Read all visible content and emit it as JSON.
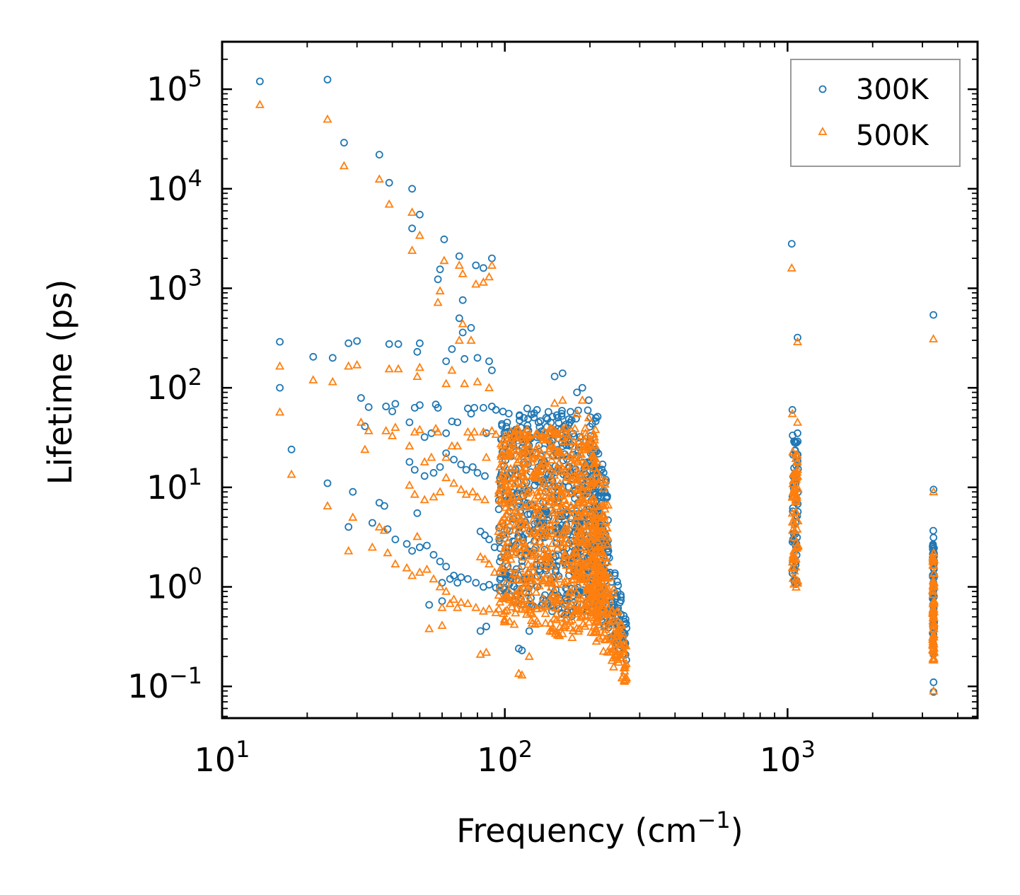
{
  "chart_data": {
    "type": "scatter",
    "title": "",
    "xlabel": "Frequency (cm",
    "xlabel_sup": "−1",
    "xlabel_suffix": ")",
    "ylabel": "Lifetime (ps)",
    "xscale": "log",
    "yscale": "log",
    "xlim": [
      10,
      4700
    ],
    "ylim": [
      0.048,
      300000
    ],
    "x_ticks": [
      {
        "value": 10,
        "base": "10",
        "exp": "1"
      },
      {
        "value": 100,
        "base": "10",
        "exp": "2"
      },
      {
        "value": 1000,
        "base": "10",
        "exp": "3"
      }
    ],
    "y_ticks": [
      {
        "value": 0.1,
        "base": "10",
        "exp": "−1"
      },
      {
        "value": 1,
        "base": "10",
        "exp": "0"
      },
      {
        "value": 10,
        "base": "10",
        "exp": "1"
      },
      {
        "value": 100,
        "base": "10",
        "exp": "2"
      },
      {
        "value": 1000,
        "base": "10",
        "exp": "3"
      },
      {
        "value": 10000,
        "base": "10",
        "exp": "4"
      },
      {
        "value": 100000,
        "base": "10",
        "exp": "5"
      }
    ],
    "legend_position": "top-right",
    "colors": {
      "300K": "#1f77b4",
      "500K": "#ff7f0e"
    },
    "series": [
      {
        "name": "300K",
        "marker": "circle",
        "color": "#1f77b4",
        "points": [
          [
            13.6,
            120000
          ],
          [
            23.6,
            125000
          ],
          [
            27.0,
            29000
          ],
          [
            36.0,
            22000
          ],
          [
            39.0,
            11500
          ],
          [
            47.0,
            10000
          ],
          [
            50.0,
            5500
          ],
          [
            47.0,
            4000
          ],
          [
            61.0,
            3100
          ],
          [
            69.0,
            2100
          ],
          [
            79.0,
            1700
          ],
          [
            84.0,
            1600
          ],
          [
            90.0,
            2000
          ],
          [
            59.0,
            1550
          ],
          [
            58.0,
            1230
          ],
          [
            71.0,
            760
          ],
          [
            69.0,
            500
          ],
          [
            71.0,
            360
          ],
          [
            76.0,
            400
          ],
          [
            16.0,
            290
          ],
          [
            28.0,
            280
          ],
          [
            30.0,
            295
          ],
          [
            39.0,
            275
          ],
          [
            42.0,
            275
          ],
          [
            50.0,
            280
          ],
          [
            49.0,
            230
          ],
          [
            62.0,
            185
          ],
          [
            65.0,
            245
          ],
          [
            72.0,
            195
          ],
          [
            80.0,
            200
          ],
          [
            88.0,
            185
          ],
          [
            90.0,
            150
          ],
          [
            21.0,
            205
          ],
          [
            24.6,
            200
          ],
          [
            16.0,
            100
          ],
          [
            17.6,
            24
          ],
          [
            23.6,
            11
          ],
          [
            28.0,
            4.0
          ],
          [
            29.0,
            9.0
          ],
          [
            31.0,
            79
          ],
          [
            33.0,
            64
          ],
          [
            32.0,
            41
          ],
          [
            38.0,
            65
          ],
          [
            40.0,
            58
          ],
          [
            41.0,
            69
          ],
          [
            46.0,
            45
          ],
          [
            48.0,
            63
          ],
          [
            50.0,
            67
          ],
          [
            52.0,
            32
          ],
          [
            55.0,
            35
          ],
          [
            57.0,
            68
          ],
          [
            58.0,
            63
          ],
          [
            62.0,
            35
          ],
          [
            65.0,
            46
          ],
          [
            68.0,
            45
          ],
          [
            74.0,
            62
          ],
          [
            76.0,
            55
          ],
          [
            78.0,
            63
          ],
          [
            84.0,
            63
          ],
          [
            86.0,
            35
          ],
          [
            90.0,
            65
          ],
          [
            93.0,
            60
          ],
          [
            46.0,
            18
          ],
          [
            48.0,
            15
          ],
          [
            52.0,
            13
          ],
          [
            56.0,
            14
          ],
          [
            59.0,
            16
          ],
          [
            62.0,
            22
          ],
          [
            66.0,
            19
          ],
          [
            70.0,
            17
          ],
          [
            73.0,
            15
          ],
          [
            77.0,
            16
          ],
          [
            80.0,
            14
          ],
          [
            85.0,
            13
          ],
          [
            49.0,
            5.5
          ],
          [
            36.0,
            7.0
          ],
          [
            37.5,
            6.5
          ],
          [
            34.0,
            4.4
          ],
          [
            38.5,
            3.8
          ],
          [
            41.0,
            3.0
          ],
          [
            45.0,
            2.7
          ],
          [
            47.0,
            2.3
          ],
          [
            50.0,
            2.5
          ],
          [
            53.0,
            2.6
          ],
          [
            56.0,
            2.1
          ],
          [
            59.0,
            1.8
          ],
          [
            62.0,
            1.6
          ],
          [
            66.0,
            1.3
          ],
          [
            70.0,
            1.25
          ],
          [
            74.0,
            1.2
          ],
          [
            79.0,
            1.1
          ],
          [
            84.0,
            1.0
          ],
          [
            88.0,
            1.05
          ],
          [
            93.0,
            0.98
          ],
          [
            99.0,
            0.95
          ],
          [
            54.0,
            0.66
          ],
          [
            60.0,
            0.72
          ],
          [
            68.0,
            1.1
          ],
          [
            82.0,
            0.36
          ],
          [
            86.0,
            0.4
          ],
          [
            112.0,
            0.24
          ],
          [
            115.0,
            0.23
          ],
          [
            122.0,
            0.36
          ],
          [
            104.0,
            0.8
          ],
          [
            108.0,
            0.75
          ],
          [
            100.0,
            1.4
          ],
          [
            96.0,
            1.8
          ],
          [
            92.0,
            2.5
          ],
          [
            88.0,
            3.0
          ],
          [
            85.0,
            3.3
          ],
          [
            82.0,
            3.6
          ],
          [
            60.0,
            1.1
          ],
          [
            64.0,
            1.2
          ]
        ],
        "clusters": [
          {
            "x_min": 95,
            "x_max": 215,
            "y_min": 0.5,
            "y_max": 60,
            "peak_x": 170,
            "count": 600
          },
          {
            "x_min": 175,
            "x_max": 232,
            "y_min": 0.8,
            "y_max": 18,
            "count": 120
          },
          {
            "x_min": 205,
            "x_max": 270,
            "y_min": 0.18,
            "y_max": 15,
            "count": 130,
            "trend": "decreasing"
          },
          {
            "x_min": 1040,
            "x_max": 1090,
            "y_min": 1.0,
            "y_max": 35,
            "count": 60
          },
          {
            "x_min": 3260,
            "x_max": 3300,
            "y_min": 0.2,
            "y_max": 3.7,
            "count": 60
          }
        ],
        "extra_points": [
          [
            1035,
            2800
          ],
          [
            1085,
            320
          ],
          [
            1040,
            60
          ],
          [
            1085,
            35
          ],
          [
            3280,
            540
          ],
          [
            3285,
            9.5
          ],
          [
            3285,
            0.11
          ],
          [
            3285,
            0.088
          ],
          [
            130,
            60
          ],
          [
            150,
            130
          ],
          [
            160,
            140
          ],
          [
            180,
            90
          ],
          [
            188,
            100
          ],
          [
            198,
            75
          ],
          [
            140,
            50
          ],
          [
            120,
            62
          ]
        ]
      },
      {
        "name": "500K",
        "marker": "triangle",
        "color": "#ff7f0e",
        "points": [
          [
            13.6,
            70000
          ],
          [
            23.6,
            50000
          ],
          [
            27.0,
            17000
          ],
          [
            36.0,
            12500
          ],
          [
            39.0,
            7000
          ],
          [
            47.0,
            5800
          ],
          [
            50.0,
            3400
          ],
          [
            47.0,
            2400
          ],
          [
            61.0,
            1900
          ],
          [
            69.0,
            1700
          ],
          [
            71.0,
            1400
          ],
          [
            79.0,
            1100
          ],
          [
            84.0,
            1150
          ],
          [
            88.0,
            1300
          ],
          [
            90.0,
            1700
          ],
          [
            59.0,
            940
          ],
          [
            58.0,
            720
          ],
          [
            71.0,
            440
          ],
          [
            69.0,
            300
          ],
          [
            76.0,
            300
          ],
          [
            16.0,
            165
          ],
          [
            28.0,
            165
          ],
          [
            30.0,
            170
          ],
          [
            39.0,
            155
          ],
          [
            42.0,
            155
          ],
          [
            50.0,
            160
          ],
          [
            49.0,
            130
          ],
          [
            62.0,
            110
          ],
          [
            65.0,
            150
          ],
          [
            72.0,
            110
          ],
          [
            80.0,
            115
          ],
          [
            88.0,
            100
          ],
          [
            21.0,
            120
          ],
          [
            24.6,
            115
          ],
          [
            16.0,
            57
          ],
          [
            17.6,
            13.5
          ],
          [
            23.6,
            6.5
          ],
          [
            28.0,
            2.3
          ],
          [
            29.0,
            5.0
          ],
          [
            31.0,
            45
          ],
          [
            33.0,
            37
          ],
          [
            32.0,
            24
          ],
          [
            38.0,
            37
          ],
          [
            40.0,
            33
          ],
          [
            41.0,
            40
          ],
          [
            46.0,
            26
          ],
          [
            48.0,
            36
          ],
          [
            50.0,
            38
          ],
          [
            52.0,
            18
          ],
          [
            55.0,
            20
          ],
          [
            57.0,
            39
          ],
          [
            58.0,
            36
          ],
          [
            62.0,
            20
          ],
          [
            65.0,
            26
          ],
          [
            68.0,
            26
          ],
          [
            74.0,
            36
          ],
          [
            76.0,
            32
          ],
          [
            78.0,
            36
          ],
          [
            84.0,
            36
          ],
          [
            86.0,
            20
          ],
          [
            90.0,
            37
          ],
          [
            93.0,
            34
          ],
          [
            46.0,
            10.5
          ],
          [
            48.0,
            8.5
          ],
          [
            52.0,
            7.5
          ],
          [
            56.0,
            8.0
          ],
          [
            59.0,
            9.0
          ],
          [
            62.0,
            12.5
          ],
          [
            66.0,
            11
          ],
          [
            70.0,
            9.5
          ],
          [
            73.0,
            8.5
          ],
          [
            77.0,
            9.0
          ],
          [
            80.0,
            8.0
          ],
          [
            85.0,
            7.5
          ],
          [
            49.0,
            3.2
          ],
          [
            36.0,
            4.0
          ],
          [
            37.5,
            3.7
          ],
          [
            34.0,
            2.5
          ],
          [
            38.5,
            2.2
          ],
          [
            41.0,
            1.7
          ],
          [
            45.0,
            1.55
          ],
          [
            47.0,
            1.3
          ],
          [
            50.0,
            1.4
          ],
          [
            53.0,
            1.5
          ],
          [
            56.0,
            1.2
          ],
          [
            59.0,
            1.0
          ],
          [
            62.0,
            0.9
          ],
          [
            66.0,
            0.75
          ],
          [
            70.0,
            0.7
          ],
          [
            74.0,
            0.68
          ],
          [
            79.0,
            0.62
          ],
          [
            84.0,
            0.57
          ],
          [
            88.0,
            0.6
          ],
          [
            93.0,
            0.55
          ],
          [
            99.0,
            0.54
          ],
          [
            54.0,
            0.38
          ],
          [
            60.0,
            0.41
          ],
          [
            68.0,
            0.62
          ],
          [
            82.0,
            0.21
          ],
          [
            86.0,
            0.22
          ],
          [
            112.0,
            0.135
          ],
          [
            115.0,
            0.13
          ],
          [
            122.0,
            0.2
          ],
          [
            104.0,
            0.45
          ],
          [
            108.0,
            0.42
          ],
          [
            100.0,
            0.8
          ],
          [
            96.0,
            1.0
          ],
          [
            92.0,
            1.4
          ],
          [
            88.0,
            1.7
          ],
          [
            85.0,
            1.9
          ],
          [
            82.0,
            2.0
          ],
          [
            60.0,
            0.62
          ],
          [
            64.0,
            0.68
          ]
        ],
        "clusters": [
          {
            "x_min": 95,
            "x_max": 215,
            "y_min": 0.3,
            "y_max": 40,
            "peak_x": 170,
            "count": 700
          },
          {
            "x_min": 175,
            "x_max": 232,
            "y_min": 0.5,
            "y_max": 12,
            "count": 140
          },
          {
            "x_min": 205,
            "x_max": 270,
            "y_min": 0.1,
            "y_max": 8,
            "count": 150,
            "trend": "decreasing"
          },
          {
            "x_min": 1040,
            "x_max": 1090,
            "y_min": 0.95,
            "y_max": 25,
            "count": 70
          },
          {
            "x_min": 3260,
            "x_max": 3300,
            "y_min": 0.17,
            "y_max": 2.2,
            "count": 70
          }
        ],
        "extra_points": [
          [
            1035,
            1600
          ],
          [
            1085,
            290
          ],
          [
            1040,
            55
          ],
          [
            1085,
            45
          ],
          [
            3280,
            310
          ],
          [
            3285,
            9.0
          ],
          [
            3285,
            0.09
          ],
          [
            130,
            35
          ],
          [
            150,
            70
          ],
          [
            160,
            75
          ],
          [
            180,
            55
          ],
          [
            188,
            75
          ],
          [
            198,
            50
          ],
          [
            140,
            30
          ],
          [
            120,
            38
          ]
        ]
      }
    ]
  }
}
